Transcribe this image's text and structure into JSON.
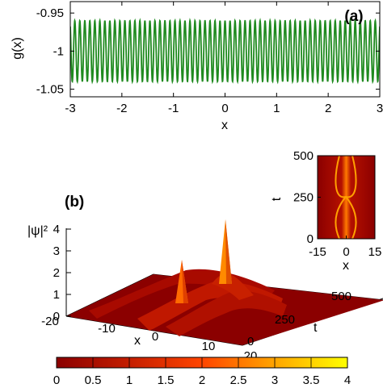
{
  "chart_data": [
    {
      "panel": "(a)",
      "type": "line",
      "xlabel": "x",
      "ylabel": "g(x)",
      "xlim": [
        -3,
        3
      ],
      "ylim": [
        -1.06,
        -0.935
      ],
      "x_ticks": [
        -3,
        -2,
        -1,
        0,
        1,
        2,
        3
      ],
      "y_ticks": [
        -0.95,
        -1,
        -1.05
      ],
      "x_tick_labels": [
        "-3",
        "-2",
        "-1",
        "0",
        "1",
        "2",
        "3"
      ],
      "y_tick_labels": [
        "-0.95",
        "-1",
        "-1.05"
      ],
      "series": [
        {
          "formula": "g(x) = -1 + 0.04 * cos(2*pi*x*10.3)",
          "mean": -1,
          "amplitude": 0.04,
          "cycles_per_unit_x": 10.3,
          "color": "#1f8a1f"
        }
      ],
      "grid": false
    },
    {
      "panel": "(b)",
      "type": "surface",
      "zlabel": "|ψ|²",
      "x_axis_label": "x",
      "t_axis_label": "t",
      "x_ticks": [
        -20,
        -10,
        0,
        10,
        20
      ],
      "x_tick_labels": [
        "-20",
        "-10",
        "0",
        "10",
        "20"
      ],
      "t_ticks": [
        0,
        250,
        500
      ],
      "t_tick_labels": [
        "0",
        "250",
        "500"
      ],
      "z_ticks": [
        0,
        1,
        2,
        3,
        4
      ],
      "z_tick_labels": [
        "0",
        "1",
        "2",
        "3",
        "4"
      ],
      "peaks": [
        {
          "x": 0,
          "t": 125,
          "z": 2.6
        },
        {
          "x": 0,
          "t": 375,
          "z": 3.9
        }
      ],
      "colormap": [
        "#8b0000",
        "#c41e00",
        "#ff4500",
        "#ffa500",
        "#ffff00"
      ]
    },
    {
      "panel": "inset",
      "type": "heatmap",
      "xlabel": "x",
      "ylabel": "t",
      "xlim": [
        -15,
        15
      ],
      "ylim": [
        0,
        500
      ],
      "x_ticks": [
        -15,
        0,
        15
      ],
      "x_tick_labels": [
        "-15",
        "0",
        "15"
      ],
      "y_ticks": [
        0,
        250,
        500
      ],
      "y_tick_labels": [
        "0",
        "250",
        "500"
      ]
    },
    {
      "panel": "colorbar",
      "type": "colorbar",
      "range": [
        0,
        4
      ],
      "ticks": [
        0,
        0.5,
        1,
        1.5,
        2,
        2.5,
        3,
        3.5,
        4
      ],
      "tick_labels": [
        "0",
        "0.5",
        "1",
        "1.5",
        "2",
        "2.5",
        "3",
        "3.5",
        "4"
      ]
    }
  ],
  "labels": {
    "panel_a": "(a)",
    "panel_b": "(b)"
  }
}
